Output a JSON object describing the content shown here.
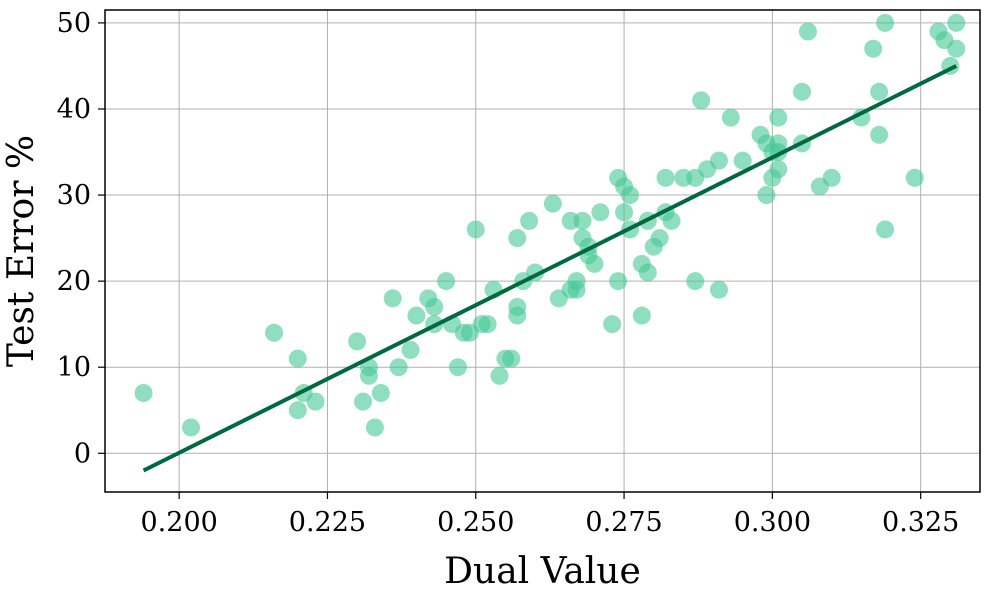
{
  "chart_data": {
    "type": "scatter",
    "xlabel": "Dual Value",
    "ylabel": "Test Error %",
    "xlim": [
      0.1875,
      0.335
    ],
    "ylim": [
      -4.5,
      51.5
    ],
    "xticks": [
      0.2,
      0.225,
      0.25,
      0.275,
      0.3,
      0.325
    ],
    "xtick_labels": [
      "0.200",
      "0.225",
      "0.250",
      "0.275",
      "0.300",
      "0.325"
    ],
    "yticks": [
      0,
      10,
      20,
      30,
      40,
      50
    ],
    "ytick_labels": [
      "0",
      "10",
      "20",
      "30",
      "40",
      "50"
    ],
    "grid": true,
    "legend": "none",
    "colors": {
      "points": "#44c896",
      "fit_line": "#006940"
    },
    "points": [
      [
        0.194,
        7
      ],
      [
        0.202,
        3
      ],
      [
        0.216,
        14
      ],
      [
        0.22,
        11
      ],
      [
        0.22,
        5
      ],
      [
        0.221,
        7
      ],
      [
        0.223,
        6
      ],
      [
        0.23,
        13
      ],
      [
        0.231,
        6
      ],
      [
        0.232,
        10
      ],
      [
        0.232,
        9
      ],
      [
        0.233,
        3
      ],
      [
        0.234,
        7
      ],
      [
        0.236,
        18
      ],
      [
        0.237,
        10
      ],
      [
        0.239,
        12
      ],
      [
        0.24,
        16
      ],
      [
        0.242,
        18
      ],
      [
        0.243,
        17
      ],
      [
        0.243,
        15
      ],
      [
        0.245,
        20
      ],
      [
        0.246,
        15
      ],
      [
        0.247,
        10
      ],
      [
        0.248,
        14
      ],
      [
        0.249,
        14
      ],
      [
        0.25,
        26
      ],
      [
        0.251,
        15
      ],
      [
        0.252,
        15
      ],
      [
        0.253,
        19
      ],
      [
        0.254,
        9
      ],
      [
        0.255,
        11
      ],
      [
        0.256,
        11
      ],
      [
        0.257,
        17
      ],
      [
        0.257,
        25
      ],
      [
        0.257,
        16
      ],
      [
        0.258,
        20
      ],
      [
        0.259,
        27
      ],
      [
        0.26,
        21
      ],
      [
        0.263,
        29
      ],
      [
        0.264,
        18
      ],
      [
        0.266,
        27
      ],
      [
        0.266,
        19
      ],
      [
        0.267,
        20
      ],
      [
        0.267,
        19
      ],
      [
        0.268,
        25
      ],
      [
        0.268,
        27
      ],
      [
        0.269,
        23
      ],
      [
        0.269,
        24
      ],
      [
        0.27,
        22
      ],
      [
        0.271,
        28
      ],
      [
        0.273,
        15
      ],
      [
        0.274,
        32
      ],
      [
        0.274,
        20
      ],
      [
        0.275,
        31
      ],
      [
        0.275,
        28
      ],
      [
        0.276,
        30
      ],
      [
        0.276,
        26
      ],
      [
        0.278,
        22
      ],
      [
        0.278,
        16
      ],
      [
        0.279,
        21
      ],
      [
        0.279,
        27
      ],
      [
        0.28,
        24
      ],
      [
        0.281,
        25
      ],
      [
        0.282,
        28
      ],
      [
        0.282,
        32
      ],
      [
        0.283,
        27
      ],
      [
        0.285,
        32
      ],
      [
        0.287,
        20
      ],
      [
        0.287,
        32
      ],
      [
        0.288,
        41
      ],
      [
        0.289,
        33
      ],
      [
        0.291,
        34
      ],
      [
        0.291,
        19
      ],
      [
        0.293,
        39
      ],
      [
        0.295,
        34
      ],
      [
        0.298,
        37
      ],
      [
        0.299,
        30
      ],
      [
        0.299,
        36
      ],
      [
        0.3,
        35
      ],
      [
        0.3,
        32
      ],
      [
        0.301,
        36
      ],
      [
        0.301,
        33
      ],
      [
        0.301,
        39
      ],
      [
        0.301,
        35
      ],
      [
        0.305,
        42
      ],
      [
        0.305,
        36
      ],
      [
        0.306,
        49
      ],
      [
        0.308,
        31
      ],
      [
        0.31,
        32
      ],
      [
        0.315,
        39
      ],
      [
        0.317,
        47
      ],
      [
        0.318,
        37
      ],
      [
        0.318,
        42
      ],
      [
        0.319,
        50
      ],
      [
        0.319,
        26
      ],
      [
        0.324,
        32
      ],
      [
        0.328,
        49
      ],
      [
        0.329,
        48
      ],
      [
        0.33,
        45
      ],
      [
        0.331,
        47
      ],
      [
        0.331,
        50
      ]
    ],
    "fit_line": {
      "x": [
        0.194,
        0.331
      ],
      "y": [
        -2,
        45
      ]
    }
  }
}
